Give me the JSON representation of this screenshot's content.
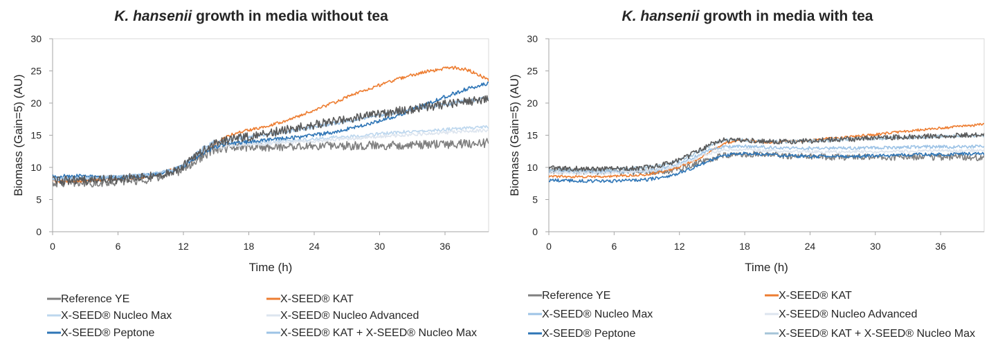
{
  "chart_data": [
    {
      "type": "line",
      "title_italic": "K. hansenii",
      "title_rest": " growth in media without tea",
      "xlabel": "Time (h)",
      "ylabel": "Biomass (Gain=5) (AU)",
      "xlim": [
        0,
        40
      ],
      "ylim": [
        0,
        30
      ],
      "xticks": [
        "0",
        "6",
        "12",
        "18",
        "24",
        "30",
        "36"
      ],
      "yticks": [
        "0",
        "5",
        "10",
        "15",
        "20",
        "25",
        "30"
      ],
      "grid": false,
      "legend_position": "bottom",
      "series": [
        {
          "name": "Reference YE",
          "color": "#7f7f7f",
          "noise": 0.7,
          "x": [
            0,
            3,
            6,
            9,
            11,
            12,
            13,
            14,
            15,
            16,
            17,
            18,
            20,
            22,
            24,
            26,
            28,
            30,
            32,
            34,
            36,
            38,
            40
          ],
          "y": [
            7.6,
            7.6,
            7.8,
            8.2,
            9,
            9.8,
            10.8,
            11.9,
            12.8,
            13,
            13.1,
            13.2,
            13.2,
            13.3,
            13.3,
            13.4,
            13.4,
            13.4,
            13.5,
            13.5,
            13.6,
            13.7,
            13.8
          ]
        },
        {
          "name": "X-SEED® KAT",
          "color": "#ed7d31",
          "noise": 0.25,
          "x": [
            0,
            3,
            6,
            9,
            11,
            12,
            13,
            14,
            15,
            16,
            17,
            18,
            20,
            22,
            24,
            26,
            28,
            30,
            32,
            34,
            36,
            37,
            38,
            39,
            40
          ],
          "y": [
            7.8,
            7.9,
            8.2,
            8.7,
            9.6,
            10.3,
            11.3,
            12.5,
            13.8,
            14.8,
            15.4,
            15.8,
            16.6,
            17.6,
            18.9,
            20.2,
            21.6,
            22.8,
            23.9,
            24.8,
            25.4,
            25.5,
            25.2,
            24.5,
            23.5
          ]
        },
        {
          "name": "X-SEED® Nucleo Max",
          "color": "#bdd7ee",
          "noise": 0.25,
          "x": [
            0,
            3,
            6,
            9,
            11,
            12,
            13,
            14,
            15,
            16,
            17,
            18,
            20,
            22,
            24,
            26,
            28,
            30,
            32,
            34,
            36,
            38,
            40
          ],
          "y": [
            8.3,
            8.4,
            8.5,
            8.9,
            9.6,
            10.3,
            11.6,
            12.8,
            13.5,
            13.7,
            13.8,
            13.8,
            14,
            14.2,
            14.4,
            14.7,
            14.9,
            15.2,
            15.5,
            15.7,
            15.9,
            16.1,
            16.3
          ]
        },
        {
          "name": "X-SEED® Nucleo Advanced",
          "color": "#dde5ef",
          "noise": 0.25,
          "x": [
            0,
            3,
            6,
            9,
            11,
            12,
            13,
            14,
            15,
            16,
            17,
            18,
            20,
            22,
            24,
            26,
            28,
            30,
            32,
            34,
            36,
            38,
            40
          ],
          "y": [
            8.4,
            8.5,
            8.6,
            8.9,
            9.5,
            10.2,
            11.4,
            12.5,
            13.1,
            13.3,
            13.4,
            13.5,
            13.7,
            13.9,
            14.1,
            14.3,
            14.5,
            14.8,
            15,
            15.2,
            15.4,
            15.6,
            15.8
          ]
        },
        {
          "name": "X-SEED® Peptone",
          "color": "#2e75b6",
          "noise": 0.3,
          "x": [
            0,
            3,
            6,
            9,
            11,
            12,
            13,
            14,
            15,
            16,
            17,
            18,
            20,
            22,
            24,
            26,
            28,
            30,
            32,
            34,
            36,
            38,
            40
          ],
          "y": [
            8.7,
            8.6,
            8.4,
            8.8,
            9.5,
            10.2,
            11.3,
            12.4,
            13.2,
            13.6,
            13.8,
            14,
            14.3,
            14.6,
            15,
            15.6,
            16.3,
            17.2,
            18.3,
            19.6,
            21,
            22.2,
            23.1
          ]
        },
        {
          "name": "X-SEED® KAT + X-SEED® Nucleo Max",
          "color": "#9dc3e6",
          "noise": 0.3,
          "x": [
            0,
            3,
            6,
            9,
            11,
            12,
            13,
            14,
            15,
            16,
            17,
            18,
            20,
            22,
            24,
            26,
            28,
            30,
            32,
            34,
            36,
            38,
            40
          ],
          "y": [
            8.2,
            8.3,
            8.5,
            8.9,
            9.6,
            10.4,
            11.8,
            13.3,
            14.1,
            14.4,
            14.6,
            14.7,
            15.2,
            15.7,
            16.3,
            16.9,
            17.5,
            18.1,
            18.7,
            19.3,
            19.8,
            20.3,
            20.8
          ]
        },
        {
          "name": "",
          "color": "#595959",
          "noise": 0.7,
          "x": [
            0,
            3,
            6,
            9,
            11,
            12,
            13,
            14,
            15,
            16,
            17,
            18,
            20,
            22,
            24,
            26,
            28,
            30,
            32,
            34,
            36,
            38,
            40
          ],
          "y": [
            7.9,
            8,
            8.2,
            8.6,
            9.4,
            10.2,
            11.5,
            12.9,
            13.7,
            14.2,
            14.5,
            14.8,
            15.4,
            16,
            16.6,
            17.2,
            17.8,
            18.3,
            18.8,
            19.3,
            19.8,
            20.2,
            20.6
          ]
        }
      ],
      "legend": [
        {
          "label": "Reference YE",
          "color": "#7f7f7f"
        },
        {
          "label": "X-SEED® KAT",
          "color": "#ed7d31"
        },
        {
          "label": "X-SEED® Nucleo Max",
          "color": "#bdd7ee"
        },
        {
          "label": "X-SEED® Nucleo Advanced",
          "color": "#dde5ef"
        },
        {
          "label": "X-SEED® Peptone",
          "color": "#2e75b6"
        },
        {
          "label": "X-SEED® KAT + X-SEED® Nucleo Max",
          "color": "#9dc3e6"
        }
      ]
    },
    {
      "type": "line",
      "title_italic": "K. hansenii",
      "title_rest": " growth in media with tea",
      "xlabel": "Time (h)",
      "ylabel": "Biomass (Gain=5) (AU)",
      "xlim": [
        0,
        40
      ],
      "ylim": [
        0,
        30
      ],
      "xticks": [
        "0",
        "6",
        "12",
        "18",
        "24",
        "30",
        "36"
      ],
      "yticks": [
        "0",
        "5",
        "10",
        "15",
        "20",
        "25",
        "30"
      ],
      "grid": false,
      "legend_position": "bottom",
      "series": [
        {
          "name": "Reference YE",
          "color": "#7f7f7f",
          "noise": 0.5,
          "x": [
            0,
            3,
            6,
            9,
            11,
            12,
            13,
            14,
            15,
            16,
            17,
            18,
            19,
            20,
            22,
            24,
            26,
            28,
            30,
            32,
            34,
            36,
            38,
            40
          ],
          "y": [
            9.5,
            9.4,
            9.3,
            9.3,
            9.5,
            9.8,
            10.3,
            10.9,
            11.4,
            11.8,
            12,
            12.1,
            12.1,
            12,
            11.8,
            11.7,
            11.6,
            11.6,
            11.6,
            11.6,
            11.6,
            11.6,
            11.6,
            11.5
          ]
        },
        {
          "name": "X-SEED® KAT",
          "color": "#ed7d31",
          "noise": 0.2,
          "x": [
            0,
            3,
            6,
            9,
            11,
            12,
            13,
            14,
            15,
            16,
            17,
            18,
            19,
            20,
            22,
            24,
            26,
            28,
            30,
            32,
            34,
            36,
            38,
            40
          ],
          "y": [
            8.6,
            8.5,
            8.6,
            8.9,
            9.6,
            10.1,
            10.8,
            11.6,
            12.6,
            13.6,
            14.1,
            14.2,
            14,
            13.9,
            14,
            14.2,
            14.5,
            14.8,
            15.1,
            15.5,
            15.8,
            16.1,
            16.4,
            16.7
          ]
        },
        {
          "name": "X-SEED® Nucleo Max",
          "color": "#9dc3e6",
          "noise": 0.25,
          "x": [
            0,
            3,
            6,
            9,
            11,
            12,
            13,
            14,
            15,
            16,
            17,
            18,
            19,
            20,
            22,
            24,
            26,
            28,
            30,
            32,
            34,
            36,
            38,
            40
          ],
          "y": [
            9.4,
            9.3,
            9.3,
            9.5,
            10,
            10.6,
            11.3,
            12.1,
            12.8,
            13.2,
            13.3,
            13.3,
            13.2,
            13.1,
            13,
            13,
            13,
            13,
            13.1,
            13.1,
            13.2,
            13.2,
            13.2,
            13.3
          ]
        },
        {
          "name": "X-SEED® Nucleo Advanced",
          "color": "#dde5ef",
          "noise": 0.25,
          "x": [
            0,
            3,
            6,
            9,
            11,
            12,
            13,
            14,
            15,
            16,
            17,
            18,
            19,
            20,
            22,
            24,
            26,
            28,
            30,
            32,
            34,
            36,
            38,
            40
          ],
          "y": [
            9.2,
            9.1,
            9.2,
            9.4,
            9.9,
            10.4,
            11,
            11.7,
            12.3,
            12.7,
            12.8,
            12.8,
            12.7,
            12.6,
            12.5,
            12.4,
            12.4,
            12.4,
            12.4,
            12.5,
            12.5,
            12.6,
            12.6,
            12.7
          ]
        },
        {
          "name": "X-SEED® Peptone",
          "color": "#2e75b6",
          "noise": 0.25,
          "x": [
            0,
            3,
            6,
            9,
            11,
            12,
            13,
            14,
            15,
            16,
            17,
            18,
            19,
            20,
            22,
            24,
            26,
            28,
            30,
            32,
            34,
            36,
            38,
            40
          ],
          "y": [
            8,
            7.9,
            7.9,
            8.1,
            8.6,
            9.2,
            9.8,
            10.5,
            11.2,
            11.8,
            12.1,
            12.2,
            12.1,
            12,
            11.8,
            11.7,
            11.7,
            11.7,
            11.8,
            11.9,
            12,
            12,
            12.1,
            12.1
          ]
        },
        {
          "name": "X-SEED® KAT + X-SEED® Nucleo Max",
          "color": "#a5c4d8",
          "noise": 0.25,
          "x": [
            0,
            3,
            6,
            9,
            11,
            12,
            13,
            14,
            15,
            16,
            17,
            18,
            19,
            20,
            22,
            24,
            26,
            28,
            30,
            32,
            34,
            36,
            38,
            40
          ],
          "y": [
            9.7,
            9.6,
            9.7,
            10,
            10.5,
            11.1,
            11.8,
            12.7,
            13.6,
            14.2,
            14.4,
            14.3,
            14.1,
            14,
            14,
            14.1,
            14.2,
            14.4,
            14.5,
            14.6,
            14.7,
            14.8,
            14.9,
            15
          ]
        },
        {
          "name": "",
          "color": "#595959",
          "noise": 0.4,
          "x": [
            0,
            3,
            6,
            9,
            11,
            12,
            13,
            14,
            15,
            16,
            17,
            18,
            19,
            20,
            22,
            24,
            26,
            28,
            30,
            32,
            34,
            36,
            38,
            40
          ],
          "y": [
            9.9,
            9.8,
            9.8,
            10,
            10.6,
            11.2,
            11.9,
            12.8,
            13.7,
            14.2,
            14.3,
            14.2,
            14.1,
            14,
            14,
            14.1,
            14.3,
            14.4,
            14.6,
            14.7,
            14.8,
            14.9,
            15,
            15.1
          ]
        }
      ],
      "legend": [
        {
          "label": "Reference YE",
          "color": "#7f7f7f"
        },
        {
          "label": "X-SEED® KAT",
          "color": "#ed7d31"
        },
        {
          "label": "X-SEED® Nucleo Max",
          "color": "#9dc3e6"
        },
        {
          "label": "X-SEED® Nucleo Advanced",
          "color": "#dde5ef"
        },
        {
          "label": "X-SEED® Peptone",
          "color": "#2e75b6"
        },
        {
          "label": "X-SEED® KAT + X-SEED® Nucleo Max",
          "color": "#a5c4d8"
        }
      ]
    }
  ]
}
